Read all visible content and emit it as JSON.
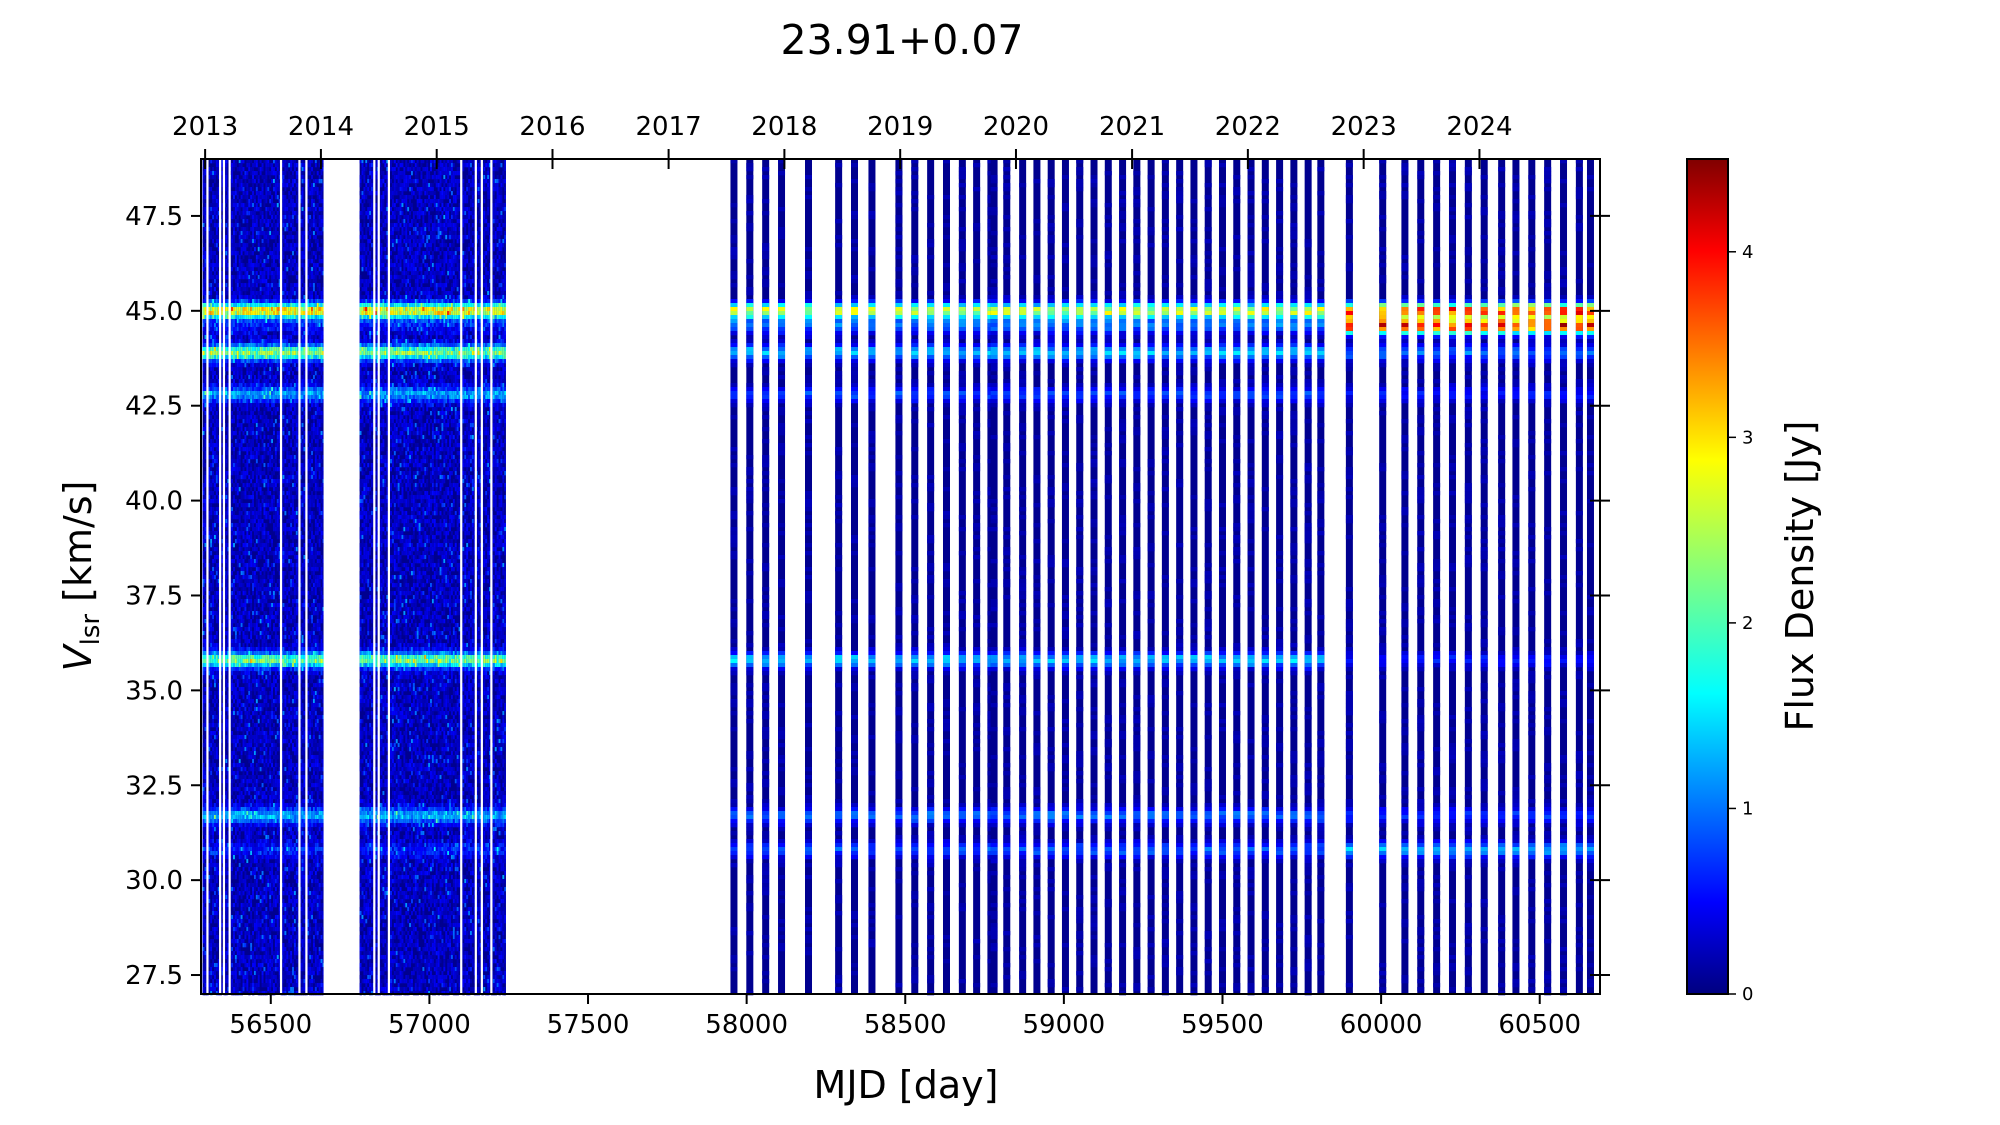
{
  "chart_data": {
    "type": "heatmap",
    "title": "23.91+0.07",
    "xlabel": "MJD [day]",
    "ylabel_main": "V",
    "ylabel_sub": "lsr",
    "ylabel_unit": " [km/s]",
    "colorbar_label": "Flux Density [Jy]",
    "colormap": "jet",
    "xlim": [
      56280,
      60690
    ],
    "ylim": [
      27,
      49
    ],
    "clim": [
      0,
      4.5
    ],
    "x_ticks": [
      "56500",
      "57000",
      "57500",
      "58000",
      "58500",
      "59000",
      "59500",
      "60000",
      "60500"
    ],
    "x_tick_values": [
      56500,
      57000,
      57500,
      58000,
      58500,
      59000,
      59500,
      60000,
      60500
    ],
    "y_ticks": [
      "27.5",
      "30.0",
      "32.5",
      "35.0",
      "37.5",
      "40.0",
      "42.5",
      "45.0",
      "47.5"
    ],
    "y_tick_values": [
      27.5,
      30.0,
      32.5,
      35.0,
      37.5,
      40.0,
      42.5,
      45.0,
      47.5
    ],
    "top_ticks": [
      "2013",
      "2014",
      "2015",
      "2016",
      "2017",
      "2018",
      "2019",
      "2020",
      "2021",
      "2022",
      "2023",
      "2024"
    ],
    "top_tick_mjd": [
      56293,
      56658,
      57023,
      57388,
      57754,
      58119,
      58484,
      58849,
      59215,
      59580,
      59945,
      60310
    ],
    "colorbar_ticks": [
      "0",
      "1",
      "2",
      "3",
      "4"
    ],
    "colorbar_tick_values": [
      0,
      1,
      2,
      3,
      4
    ],
    "observing_periods": [
      {
        "start": 56285,
        "end": 56665
      },
      {
        "start": 56780,
        "end": 57240
      }
    ],
    "dense_period_gaps": [
      56300,
      56340,
      56352,
      56370,
      56532,
      56590,
      56612,
      56826,
      56840,
      56872,
      57100,
      57146,
      57165,
      57195
    ],
    "single_epochs": [
      57960,
      58010,
      58060,
      58110,
      58195,
      58290,
      58340,
      58395,
      58480,
      58530,
      58580,
      58630,
      58680,
      58725,
      58770,
      58780,
      58820,
      58870,
      58915,
      58960,
      59005,
      59050,
      59095,
      59140,
      59185,
      59230,
      59275,
      59320,
      59365,
      59410,
      59455,
      59500,
      59545,
      59590,
      59635,
      59680,
      59725,
      59770,
      59810,
      59900,
      60005,
      60075,
      60125,
      60175,
      60225,
      60275,
      60325,
      60380,
      60425,
      60475,
      60525,
      60575,
      60625,
      60660
    ],
    "emission_lines": [
      {
        "velocity": 45.0,
        "peak_early": 2.6,
        "peak_mid": 2.5,
        "peak_late": 3.5
      },
      {
        "velocity": 44.6,
        "peak_early": 0.3,
        "peak_mid": 0.9,
        "peak_late": 3.7
      },
      {
        "velocity": 43.9,
        "peak_early": 2.0,
        "peak_mid": 1.3,
        "peak_late": 0.9
      },
      {
        "velocity": 42.8,
        "peak_early": 1.0,
        "peak_mid": 0.7,
        "peak_late": 0.5
      },
      {
        "velocity": 35.8,
        "peak_early": 1.9,
        "peak_mid": 1.3,
        "peak_late": 0.5
      },
      {
        "velocity": 31.7,
        "peak_early": 1.1,
        "peak_mid": 0.9,
        "peak_late": 0.6
      },
      {
        "velocity": 30.8,
        "peak_early": 0.4,
        "peak_mid": 0.8,
        "peak_late": 1.2
      }
    ]
  }
}
